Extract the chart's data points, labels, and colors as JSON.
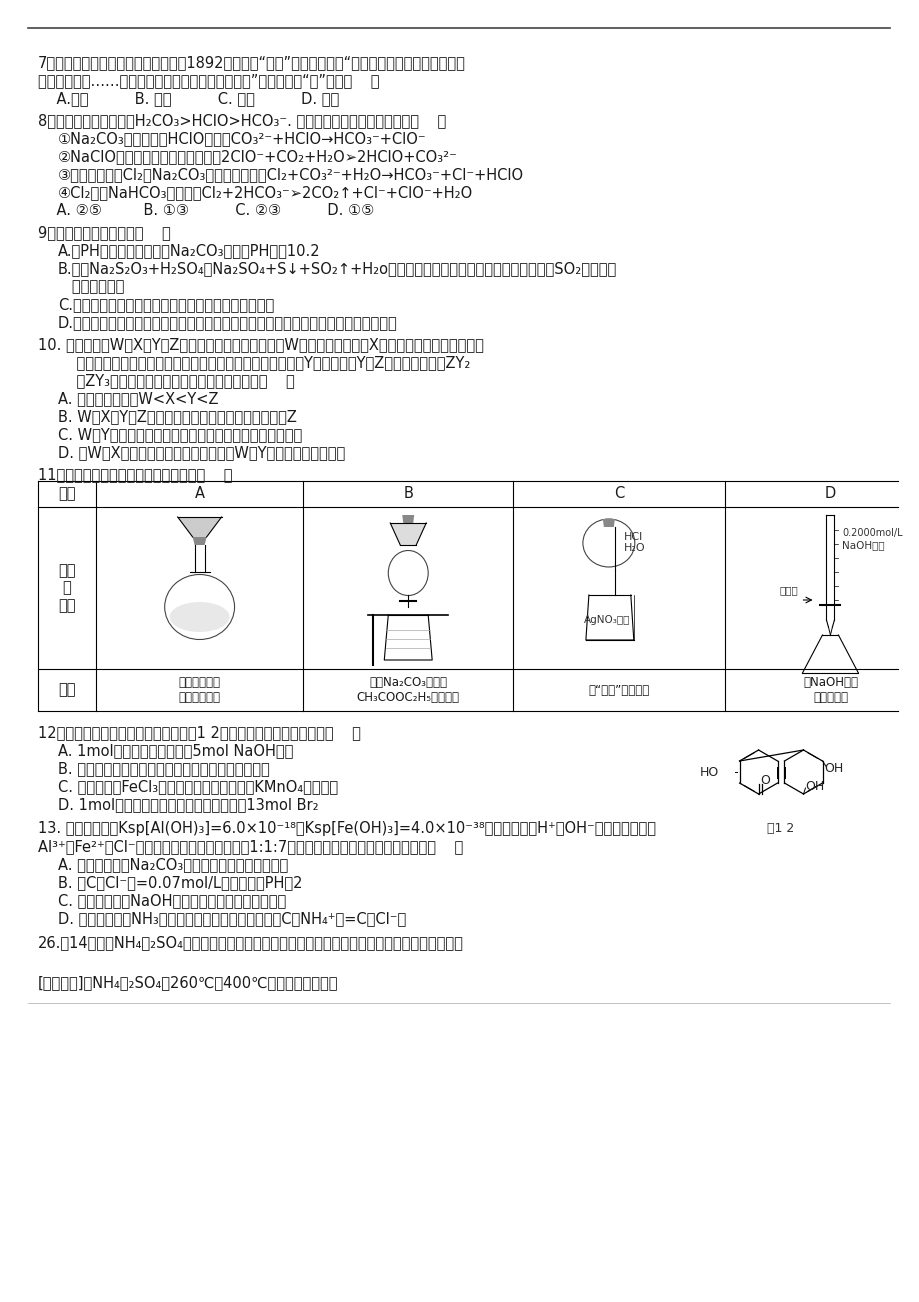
{
  "bg_color": "#ffffff",
  "lm": 38,
  "q7_lines": [
    "7、我国明代《本草纲目》中收载药物1892种，其中“烧酒”条目下写道：“自元时始创其法，用浓酒和糟",
    "入甮，蒸气上……其清如水，味极浓烈，盖酒露也。”这里所用的“法”是指（    ）",
    "    A.萄取          B. 渗析          C. 蒸馏          D. 干馏"
  ],
  "q8_lines": [
    "8、已知电离平衡常数：H₂CO₃>HClO>HCO₃⁻. 下列离子反应方程式正确的是（    ）",
    "①Na₂CO₃溶液中加入HClO溶液：CO₃²⁻+HClO→HCO₃⁻+ClO⁻",
    "②NaClO溶液中通入少量二氧化碳：2ClO⁻+CO₂+H₂O➢2HClO+CO₃²⁻",
    "③等物质的量的Cl₂与Na₂CO₃溶液恰好反应：Cl₂+CO₃²⁻+H₂O→HCO₃⁻+Cl⁻+HClO",
    "④Cl₂通入NaHCO₃溶液中：Cl₂+2HCO₃⁻➢2CO₂↑+Cl⁻+ClO⁻+H₂O",
    "    A. ②⑤         B. ①③          C. ②③          D. ①⑤"
  ],
  "q9_lines": [
    "9、下列说法正确的是：（    ）",
    "A.用PH试纸测得某浓度的Na₂CO₃溶液的PH値为10.2",
    "B.已知Na₂S₂O₃+H₂SO₄＝Na₂SO₄+S↓+SO₂↑+H₂o，在定量测定该反应速率时，可用排水法测SO₂的体积，",
    "   计算反应速率",
    "C.蒸发结晶时，将蒸发皿中的溶液蒸干后得到所需固体",
    "D.油脂皼化反应后的反应液中加入饱和食盐水并搞拌后，生成的高级脂肪酸钓浮在水面"
  ],
  "q10_lines": [
    "10. 短周期元素W、X、Y和Z的原子序数依次增大。其中W的原子半径最小，X的一种核素在考古时常用来",
    "    鉴定一些文物的年代，工业上采用液态空气分馏方法来生产Y的单质，且Y和Z可以形成化合物ZY₂",
    "    和ZY₃。根据以上叙述，下列说法中正确的是（    ）",
    "A. 原子半径大小为W<X<Y<Z",
    "B. W与X、Y、Z分别形成最简单化合物中最稳定的是Z",
    "C. W与Y可形成既含极性共价键又含非极性共价键的化合物",
    "D. 由W与X组成的化合物的永点总低于由W与Y组成的卨合物的永点"
  ],
  "q11_line": "11下列操作或装置能达到实验目的的是（    ）",
  "tbl_headers": [
    "选项",
    "A",
    "B",
    "C",
    "D"
  ],
  "tbl_op_label": "操作\n或\n装置",
  "tbl_goal_label": "目的",
  "tbl_purposes": [
    "配制一定物质\n的量浓度溶液",
    "分离Na₂CO₃溶液和\nCH₃COOC₂H₅的混合物",
    "做“白色”噴泉实验",
    "用NaOH溶液\n滴定稀盐酸"
  ],
  "q12_lines": [
    "12、某小分子抗癌药物的分子结构如题1 2图所示，下列说法正确的是（    ）",
    "A. 1mol该有机物最多可以和5mol NaOH反应",
    "B. 该有机物容易发生加成、取代、中和、消去等反应",
    "C. 该有机物遇FeCl₃溶液不变色，但可使酸性KMnO₄溶液褪色",
    "D. 1mol该有机物与浓溝水反应，最多消耰13mol Br₂"
  ],
  "q12_label": "题1 2",
  "q13_lines": [
    "13. 已知常温下：Ksp[Al(OH)₃]=6.0×10⁻¹⁸，Ksp[Fe(OH)₃]=4.0×10⁻³⁸，某溶液中除H⁺，OH⁻外，还有大量的",
    "Al³⁺、Fe²⁺、Cl⁻，且这三种离子的数量之比为1:1:7，下列有关该溶液判断不正确的是：（    ）",
    "A. 向溶液中滴加Na₂CO₃溶液，立即产生沉淠和气体",
    "B. 若C（Cl⁻）=0.07mol/L，则溶液的PH为2",
    "C. 往溶液中加入NaOH溶液，先生成的沉淠呼红褐色",
    "D. 往溶液中通入NH₃，直至溶液呼中性，此时溶液中C（NH₄⁺）=C（Cl⁻）"
  ],
  "q26_lines": [
    "26.（14分）（NH₄）₂SO₄是常见的化肥和化工原料，受热易分解。某兴趣小组拟探究其分解产物。",
    "",
    "[查阅资料]（NH₄）₂SO₄在260℃和400℃时分解产物不同。"
  ]
}
